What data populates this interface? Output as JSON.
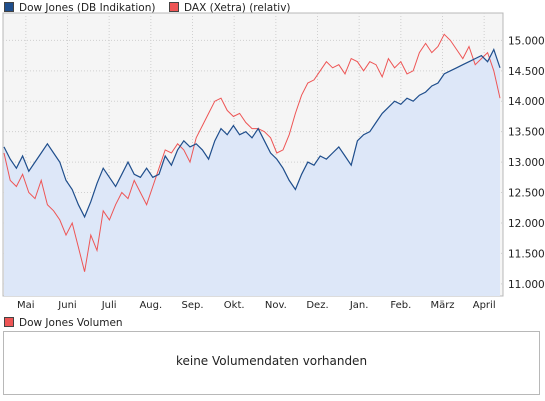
{
  "legend": {
    "series1": {
      "label": "Dow Jones (DB Indikation)",
      "color": "#1f4e8c"
    },
    "series2": {
      "label": "DAX (Xetra) (relativ)",
      "color": "#ee5555"
    }
  },
  "volume": {
    "legend_label": "Dow Jones Volumen",
    "legend_color": "#ee5555",
    "message": "keine Volumendaten vorhanden"
  },
  "chart_data": {
    "type": "line",
    "x_tick_labels": [
      "Mai",
      "Juni",
      "Juli",
      "Aug.",
      "Sep.",
      "Okt.",
      "Nov.",
      "Dez.",
      "Jan.",
      "Feb.",
      "März",
      "April"
    ],
    "y_tick_labels": [
      "11.000",
      "11.500",
      "12.000",
      "12.500",
      "13.000",
      "13.500",
      "14.000",
      "14.500",
      "15.000"
    ],
    "ylim": [
      10800,
      15450
    ],
    "grid": true,
    "legend_position": "top-left",
    "series": [
      {
        "name": "Dow Jones (DB Indikation)",
        "color": "#1f4e8c",
        "fill": "#dde7f8",
        "points": [
          [
            0,
            13250
          ],
          [
            1,
            13050
          ],
          [
            2,
            12900
          ],
          [
            3,
            13100
          ],
          [
            4,
            12850
          ],
          [
            5,
            13000
          ],
          [
            6,
            13150
          ],
          [
            7,
            13300
          ],
          [
            8,
            13150
          ],
          [
            9,
            13000
          ],
          [
            10,
            12700
          ],
          [
            11,
            12550
          ],
          [
            12,
            12300
          ],
          [
            13,
            12100
          ],
          [
            14,
            12350
          ],
          [
            15,
            12650
          ],
          [
            16,
            12900
          ],
          [
            17,
            12750
          ],
          [
            18,
            12600
          ],
          [
            19,
            12800
          ],
          [
            20,
            13000
          ],
          [
            21,
            12800
          ],
          [
            22,
            12750
          ],
          [
            23,
            12900
          ],
          [
            24,
            12750
          ],
          [
            25,
            12800
          ],
          [
            26,
            13100
          ],
          [
            27,
            12950
          ],
          [
            28,
            13200
          ],
          [
            29,
            13350
          ],
          [
            30,
            13250
          ],
          [
            31,
            13300
          ],
          [
            32,
            13200
          ],
          [
            33,
            13050
          ],
          [
            34,
            13350
          ],
          [
            35,
            13550
          ],
          [
            36,
            13450
          ],
          [
            37,
            13600
          ],
          [
            38,
            13450
          ],
          [
            39,
            13500
          ],
          [
            40,
            13400
          ],
          [
            41,
            13550
          ],
          [
            42,
            13350
          ],
          [
            43,
            13150
          ],
          [
            44,
            13050
          ],
          [
            45,
            12900
          ],
          [
            46,
            12700
          ],
          [
            47,
            12550
          ],
          [
            48,
            12800
          ],
          [
            49,
            13000
          ],
          [
            50,
            12950
          ],
          [
            51,
            13100
          ],
          [
            52,
            13050
          ],
          [
            53,
            13150
          ],
          [
            54,
            13250
          ],
          [
            55,
            13100
          ],
          [
            56,
            12950
          ],
          [
            57,
            13350
          ],
          [
            58,
            13450
          ],
          [
            59,
            13500
          ],
          [
            60,
            13650
          ],
          [
            61,
            13800
          ],
          [
            62,
            13900
          ],
          [
            63,
            14000
          ],
          [
            64,
            13950
          ],
          [
            65,
            14050
          ],
          [
            66,
            14000
          ],
          [
            67,
            14100
          ],
          [
            68,
            14150
          ],
          [
            69,
            14250
          ],
          [
            70,
            14300
          ],
          [
            71,
            14450
          ],
          [
            72,
            14500
          ],
          [
            73,
            14550
          ],
          [
            74,
            14600
          ],
          [
            75,
            14650
          ],
          [
            76,
            14700
          ],
          [
            77,
            14750
          ],
          [
            78,
            14650
          ],
          [
            79,
            14850
          ],
          [
            80,
            14550
          ]
        ]
      },
      {
        "name": "DAX (Xetra) (relativ)",
        "color": "#ee5555",
        "points": [
          [
            0,
            13150
          ],
          [
            1,
            12700
          ],
          [
            2,
            12600
          ],
          [
            3,
            12800
          ],
          [
            4,
            12500
          ],
          [
            5,
            12400
          ],
          [
            6,
            12700
          ],
          [
            7,
            12300
          ],
          [
            8,
            12200
          ],
          [
            9,
            12050
          ],
          [
            10,
            11800
          ],
          [
            11,
            12000
          ],
          [
            12,
            11600
          ],
          [
            13,
            11200
          ],
          [
            14,
            11800
          ],
          [
            15,
            11550
          ],
          [
            16,
            12200
          ],
          [
            17,
            12050
          ],
          [
            18,
            12300
          ],
          [
            19,
            12500
          ],
          [
            20,
            12400
          ],
          [
            21,
            12700
          ],
          [
            22,
            12500
          ],
          [
            23,
            12300
          ],
          [
            24,
            12600
          ],
          [
            25,
            12900
          ],
          [
            26,
            13200
          ],
          [
            27,
            13150
          ],
          [
            28,
            13300
          ],
          [
            29,
            13200
          ],
          [
            30,
            13000
          ],
          [
            31,
            13400
          ],
          [
            32,
            13600
          ],
          [
            33,
            13800
          ],
          [
            34,
            14000
          ],
          [
            35,
            14050
          ],
          [
            36,
            13850
          ],
          [
            37,
            13750
          ],
          [
            38,
            13800
          ],
          [
            39,
            13650
          ],
          [
            40,
            13550
          ],
          [
            41,
            13550
          ],
          [
            42,
            13500
          ],
          [
            43,
            13400
          ],
          [
            44,
            13150
          ],
          [
            45,
            13200
          ],
          [
            46,
            13450
          ],
          [
            47,
            13800
          ],
          [
            48,
            14100
          ],
          [
            49,
            14300
          ],
          [
            50,
            14350
          ],
          [
            51,
            14500
          ],
          [
            52,
            14650
          ],
          [
            53,
            14550
          ],
          [
            54,
            14600
          ],
          [
            55,
            14450
          ],
          [
            56,
            14700
          ],
          [
            57,
            14650
          ],
          [
            58,
            14500
          ],
          [
            59,
            14650
          ],
          [
            60,
            14600
          ],
          [
            61,
            14400
          ],
          [
            62,
            14700
          ],
          [
            63,
            14550
          ],
          [
            64,
            14650
          ],
          [
            65,
            14450
          ],
          [
            66,
            14500
          ],
          [
            67,
            14800
          ],
          [
            68,
            14950
          ],
          [
            69,
            14800
          ],
          [
            70,
            14900
          ],
          [
            71,
            15100
          ],
          [
            72,
            15000
          ],
          [
            73,
            14850
          ],
          [
            74,
            14700
          ],
          [
            75,
            14900
          ],
          [
            76,
            14600
          ],
          [
            77,
            14700
          ],
          [
            78,
            14800
          ],
          [
            79,
            14500
          ],
          [
            80,
            14050
          ]
        ]
      }
    ]
  }
}
